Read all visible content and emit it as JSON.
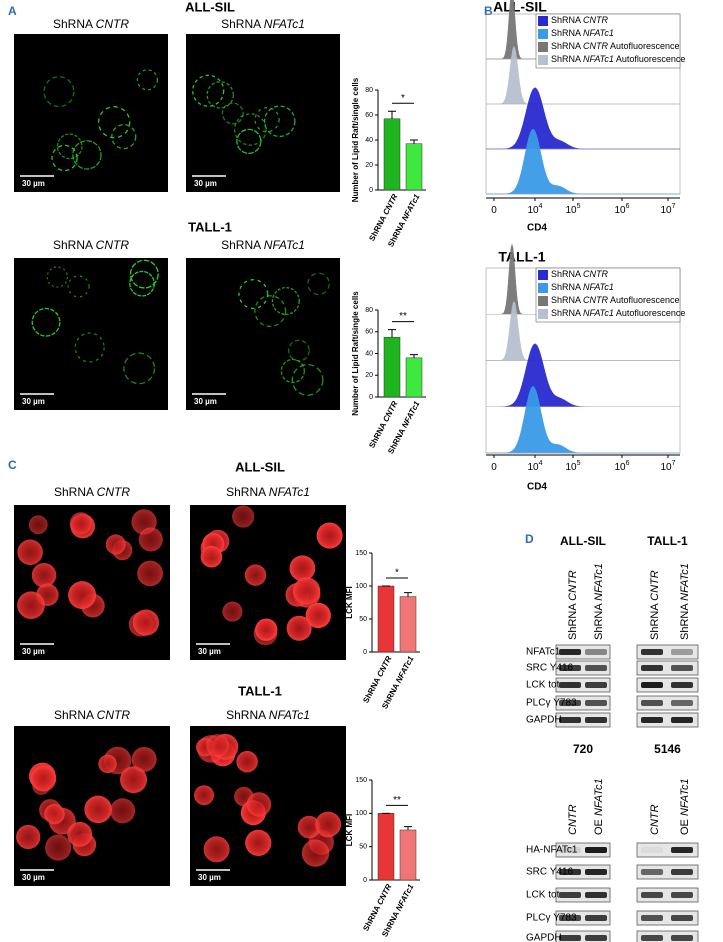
{
  "panel_a": {
    "label": "A",
    "groups": [
      {
        "title": "ALL-SIL",
        "images": [
          {
            "prefix": "ShRNA ",
            "gene": "CNTR",
            "scale_bar": "30 µm"
          },
          {
            "prefix": "ShRNA ",
            "gene": "NFATc1",
            "scale_bar": "30 µm"
          }
        ],
        "chart": {
          "y_label": "Number of Lipid Raft/single cells",
          "ylim": [
            0,
            80
          ],
          "yticks": [
            0,
            20,
            40,
            60,
            80
          ],
          "categories": [
            {
              "prefix": "ShRNA ",
              "gene": "CNTR"
            },
            {
              "prefix": "ShRNA ",
              "gene": "NFATc1"
            }
          ],
          "values": [
            57,
            37
          ],
          "errors": [
            6,
            3
          ],
          "colors": [
            "#1fb51f",
            "#3fe83f"
          ],
          "significance": "*"
        }
      },
      {
        "title": "TALL-1",
        "images": [
          {
            "prefix": "ShRNA ",
            "gene": "CNTR",
            "scale_bar": "30 µm"
          },
          {
            "prefix": "ShRNA ",
            "gene": "NFATc1",
            "scale_bar": "30 µm"
          }
        ],
        "chart": {
          "y_label": "Number of Lipid Raft/single cells",
          "ylim": [
            0,
            80
          ],
          "yticks": [
            0,
            20,
            40,
            60,
            80
          ],
          "categories": [
            {
              "prefix": "ShRNA ",
              "gene": "CNTR"
            },
            {
              "prefix": "ShRNA ",
              "gene": "NFATc1"
            }
          ],
          "values": [
            55,
            36
          ],
          "errors": [
            7,
            3
          ],
          "colors": [
            "#1fb51f",
            "#3fe83f"
          ],
          "significance": "**"
        }
      }
    ]
  },
  "panel_b": {
    "label": "B",
    "groups": [
      {
        "title": "ALL-SIL",
        "x_label": "CD4",
        "x_ticks": [
          {
            "base": "0"
          },
          {
            "base": "10",
            "exp": "4"
          },
          {
            "base": "10",
            "exp": "5"
          },
          {
            "base": "10",
            "exp": "6"
          },
          {
            "base": "10",
            "exp": "7"
          }
        ],
        "legend": [
          {
            "prefix": "ShRNA ",
            "gene": "CNTR",
            "color": "#2a2ad0"
          },
          {
            "prefix": "ShRNA ",
            "gene": "NFATc1",
            "color": "#3a9ae8"
          },
          {
            "prefix": "ShRNA ",
            "gene": "CNTR",
            "suffix": " Autofluorescence",
            "color": "#777777"
          },
          {
            "prefix": "ShRNA ",
            "gene": "NFATc1",
            "suffix": " Autofluorescence",
            "color": "#b8bfd0"
          }
        ]
      },
      {
        "title": "TALL-1",
        "x_label": "CD4",
        "x_ticks": [
          {
            "base": "0"
          },
          {
            "base": "10",
            "exp": "4"
          },
          {
            "base": "10",
            "exp": "5"
          },
          {
            "base": "10",
            "exp": "6"
          },
          {
            "base": "10",
            "exp": "7"
          }
        ],
        "legend": [
          {
            "prefix": "ShRNA ",
            "gene": "CNTR",
            "color": "#2a2ad0"
          },
          {
            "prefix": "ShRNA ",
            "gene": "NFATc1",
            "color": "#3a9ae8"
          },
          {
            "prefix": "ShRNA ",
            "gene": "CNTR",
            "suffix": " Autofluorescence",
            "color": "#777777"
          },
          {
            "prefix": "ShRNA ",
            "gene": "NFATc1",
            "suffix": " Autofluorescence",
            "color": "#b8bfd0"
          }
        ]
      }
    ]
  },
  "panel_c": {
    "label": "C",
    "groups": [
      {
        "title": "ALL-SIL",
        "images": [
          {
            "prefix": "ShRNA ",
            "gene": "CNTR",
            "scale_bar": "30 µm"
          },
          {
            "prefix": "ShRNA ",
            "gene": "NFATc1",
            "scale_bar": "30 µm"
          }
        ],
        "chart": {
          "y_label": "LCK MFI",
          "ylim": [
            0,
            150
          ],
          "yticks": [
            0,
            50,
            100,
            150
          ],
          "categories": [
            {
              "prefix": "ShRNA ",
              "gene": "CNTR"
            },
            {
              "prefix": "ShRNA ",
              "gene": "NFATc1"
            }
          ],
          "values": [
            100,
            84
          ],
          "errors": [
            0,
            6
          ],
          "colors": [
            "#e83535",
            "#f07575"
          ],
          "significance": "*"
        }
      },
      {
        "title": "TALL-1",
        "images": [
          {
            "prefix": "ShRNA ",
            "gene": "CNTR",
            "scale_bar": "30 µm"
          },
          {
            "prefix": "ShRNA ",
            "gene": "NFATc1",
            "scale_bar": "30 µm"
          }
        ],
        "chart": {
          "y_label": "LCK MFI",
          "ylim": [
            0,
            150
          ],
          "yticks": [
            0,
            50,
            100,
            150
          ],
          "categories": [
            {
              "prefix": "ShRNA ",
              "gene": "CNTR"
            },
            {
              "prefix": "ShRNA ",
              "gene": "NFATc1"
            }
          ],
          "values": [
            100,
            75
          ],
          "errors": [
            0,
            5
          ],
          "colors": [
            "#e83535",
            "#f07575"
          ],
          "significance": "**"
        }
      }
    ]
  },
  "panel_d": {
    "label": "D",
    "blocks": [
      {
        "columns": [
          {
            "title": "ALL-SIL",
            "lanes": [
              {
                "prefix": "ShRNA ",
                "gene": "CNTR"
              },
              {
                "prefix": "ShRNA ",
                "gene": "NFATc1"
              }
            ]
          },
          {
            "title": "TALL-1",
            "lanes": [
              {
                "prefix": "ShRNA ",
                "gene": "CNTR"
              },
              {
                "prefix": "ShRNA ",
                "gene": "NFATc1"
              }
            ]
          }
        ],
        "rows": [
          "NFATc1",
          "SRC Y416",
          "LCK tot",
          "PLCγ Y783",
          "GAPDH"
        ]
      },
      {
        "columns": [
          {
            "title": "720",
            "lanes": [
              {
                "gene": "CNTR"
              },
              {
                "prefix": "OE ",
                "gene": "NFATc1"
              }
            ]
          },
          {
            "title": "5146",
            "lanes": [
              {
                "gene": "CNTR"
              },
              {
                "prefix": "OE ",
                "gene": "NFATc1"
              }
            ]
          }
        ],
        "rows": [
          "HA-NFATc1",
          "SRC Y416",
          "LCK tot",
          "PLCγ Y783",
          "GAPDH"
        ]
      }
    ]
  }
}
